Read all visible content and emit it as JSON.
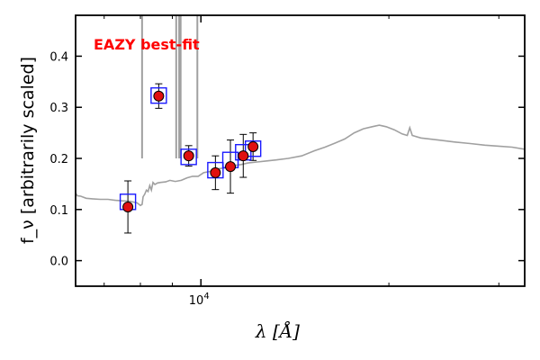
{
  "chart_data": {
    "type": "scatter",
    "title": "",
    "xlabel": "λ [Å]",
    "ylabel": "f_ν [arbitrarily scaled]",
    "xscale": "log",
    "xlim": [
      6300,
      33000
    ],
    "ylim": [
      -0.05,
      0.48
    ],
    "yticks": [
      0.0,
      0.1,
      0.2,
      0.3,
      0.4
    ],
    "ytick_labels": [
      "0.0",
      "0.1",
      "0.2",
      "0.3",
      "0.4"
    ],
    "xtick_label": {
      "base": "10",
      "exp": "4",
      "value": 10000
    },
    "grid": false,
    "annotation": {
      "text": "EAZY best-fit",
      "color": "#ff0000",
      "placement": "top-left"
    },
    "colors": {
      "observed": "#e01010",
      "model": "#1a1aff",
      "sed": "#a0a0a0",
      "errorbar": "#000000"
    },
    "series": [
      {
        "name": "observed photometry",
        "marker": "circle",
        "points": [
          {
            "x": 7640,
            "y": 0.105,
            "err": 0.051
          },
          {
            "x": 8560,
            "y": 0.322,
            "err": 0.024
          },
          {
            "x": 9560,
            "y": 0.205,
            "err": 0.02
          },
          {
            "x": 10550,
            "y": 0.172,
            "err": 0.033
          },
          {
            "x": 11150,
            "y": 0.184,
            "err": 0.052
          },
          {
            "x": 11690,
            "y": 0.205,
            "err": 0.042
          },
          {
            "x": 12120,
            "y": 0.223,
            "err": 0.027
          }
        ]
      },
      {
        "name": "model photometry",
        "marker": "square",
        "points": [
          {
            "x": 7640,
            "y": 0.115
          },
          {
            "x": 8560,
            "y": 0.323
          },
          {
            "x": 9560,
            "y": 0.203
          },
          {
            "x": 10550,
            "y": 0.177
          },
          {
            "x": 11150,
            "y": 0.197
          },
          {
            "x": 11690,
            "y": 0.212
          },
          {
            "x": 12120,
            "y": 0.219
          }
        ]
      },
      {
        "name": "EAZY best-fit SED",
        "type": "line",
        "points": [
          [
            6300,
            0.132
          ],
          [
            6340,
            0.127
          ],
          [
            6420,
            0.126
          ],
          [
            6550,
            0.122
          ],
          [
            6700,
            0.121
          ],
          [
            6900,
            0.12
          ],
          [
            7100,
            0.12
          ],
          [
            7300,
            0.118
          ],
          [
            7500,
            0.117
          ],
          [
            7700,
            0.116
          ],
          [
            7900,
            0.113
          ],
          [
            8000,
            0.108
          ],
          [
            8050,
            0.11
          ],
          [
            8080,
            0.125
          ],
          [
            8130,
            0.13
          ],
          [
            8180,
            0.138
          ],
          [
            8230,
            0.135
          ],
          [
            8280,
            0.147
          ],
          [
            8330,
            0.138
          ],
          [
            8380,
            0.153
          ],
          [
            8440,
            0.149
          ],
          [
            8520,
            0.152
          ],
          [
            8620,
            0.153
          ],
          [
            8780,
            0.154
          ],
          [
            8920,
            0.157
          ],
          [
            9100,
            0.155
          ],
          [
            9300,
            0.157
          ],
          [
            9500,
            0.162
          ],
          [
            9700,
            0.165
          ],
          [
            9900,
            0.165
          ],
          [
            10100,
            0.172
          ],
          [
            10400,
            0.175
          ],
          [
            10700,
            0.18
          ],
          [
            11000,
            0.182
          ],
          [
            11300,
            0.186
          ],
          [
            11600,
            0.188
          ],
          [
            11900,
            0.191
          ],
          [
            12300,
            0.193
          ],
          [
            12700,
            0.195
          ],
          [
            13200,
            0.197
          ],
          [
            13800,
            0.2
          ],
          [
            14500,
            0.205
          ],
          [
            15200,
            0.215
          ],
          [
            15800,
            0.222
          ],
          [
            16400,
            0.23
          ],
          [
            17000,
            0.238
          ],
          [
            17600,
            0.25
          ],
          [
            18200,
            0.258
          ],
          [
            18800,
            0.262
          ],
          [
            19300,
            0.265
          ],
          [
            19800,
            0.262
          ],
          [
            20400,
            0.256
          ],
          [
            21000,
            0.248
          ],
          [
            21400,
            0.245
          ],
          [
            21600,
            0.26
          ],
          [
            21800,
            0.245
          ],
          [
            22500,
            0.24
          ],
          [
            24000,
            0.236
          ],
          [
            25500,
            0.232
          ],
          [
            27000,
            0.229
          ],
          [
            28500,
            0.226
          ],
          [
            30000,
            0.224
          ],
          [
            31500,
            0.222
          ],
          [
            33000,
            0.218
          ]
        ],
        "emission_lines": [
          {
            "x": 8050,
            "peak": 0.48
          },
          {
            "x": 9130,
            "peak": 0.48
          },
          {
            "x": 9230,
            "peak": 0.48
          },
          {
            "x": 9280,
            "peak": 0.48
          },
          {
            "x": 9870,
            "peak": 0.48
          }
        ]
      }
    ]
  }
}
